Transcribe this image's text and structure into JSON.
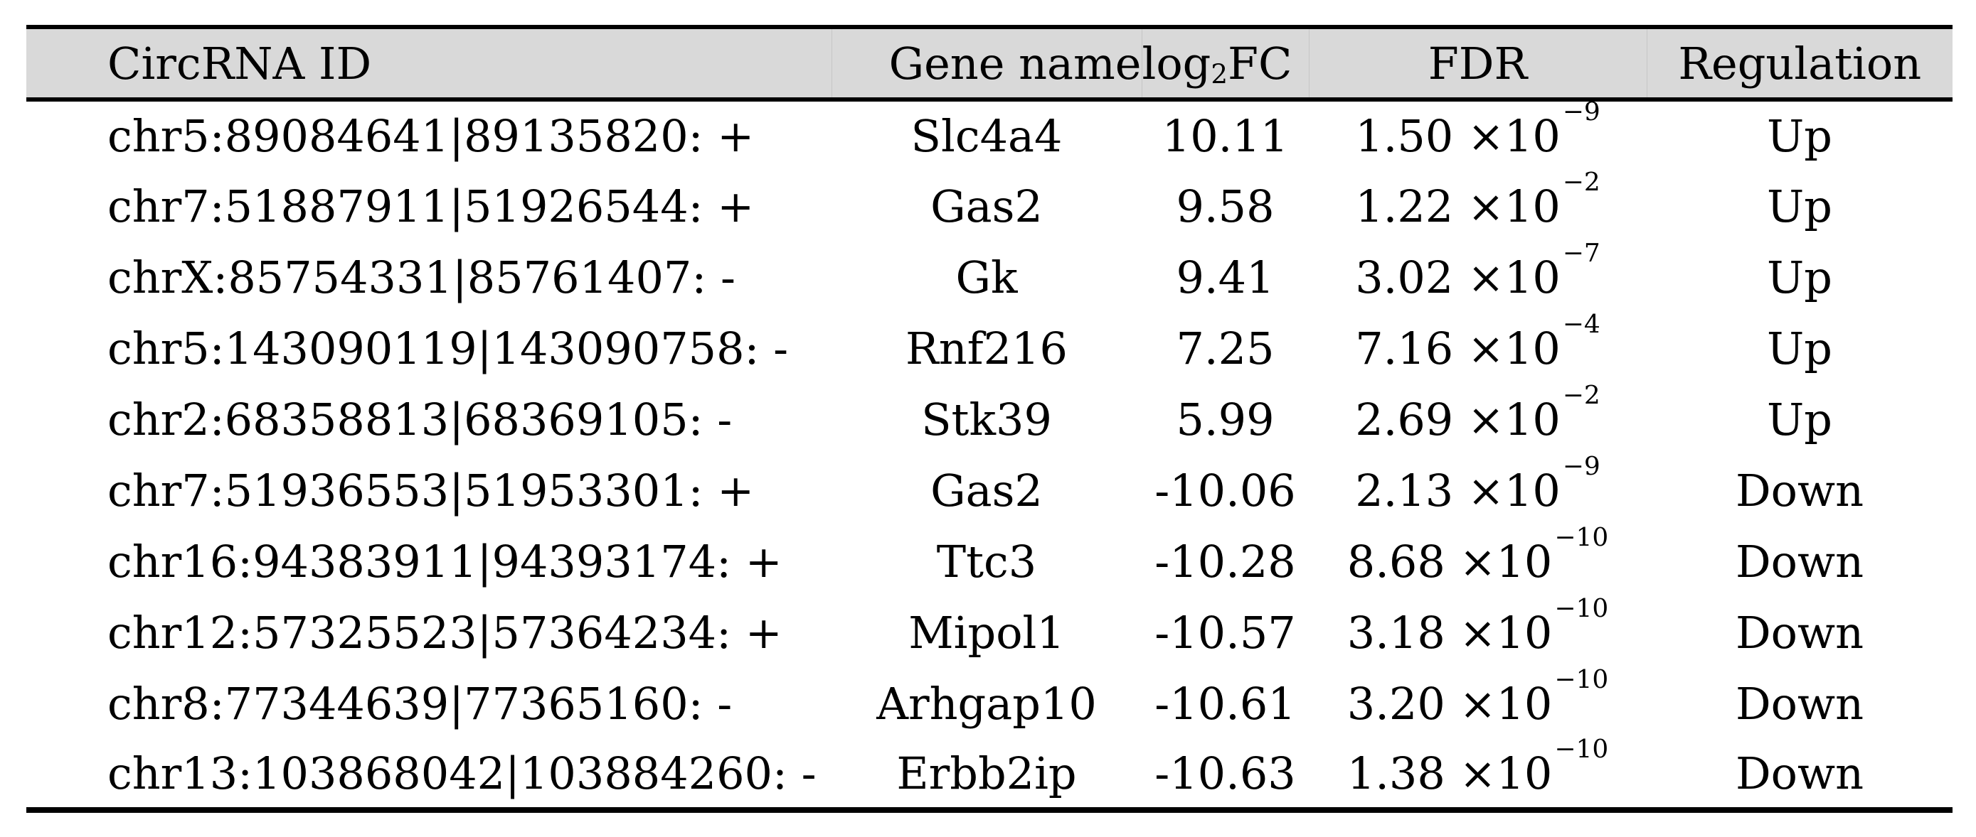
{
  "page": {
    "background": "#ffffff"
  },
  "table": {
    "style": {
      "header_bg": "#d9d9d9",
      "rule_color": "#000000",
      "text_color": "#000000"
    },
    "header": {
      "circrna": "CircRNA ID",
      "gene": "Gene name",
      "log2fc": {
        "pre": "log",
        "sub": "2",
        "post": "FC"
      },
      "fdr": "FDR",
      "regulation": "Regulation"
    },
    "rows": [
      {
        "id": "chr5:89084641|89135820: +",
        "gene": "Slc4a4",
        "fc": "10.11",
        "fdr_base": "1.50 ×10",
        "fdr_exp": "−9",
        "reg": "Up"
      },
      {
        "id": "chr7:51887911|51926544: +",
        "gene": "Gas2",
        "fc": "9.58",
        "fdr_base": "1.22 ×10",
        "fdr_exp": "−2",
        "reg": "Up"
      },
      {
        "id": "chrX:85754331|85761407: -",
        "gene": "Gk",
        "fc": "9.41",
        "fdr_base": "3.02 ×10",
        "fdr_exp": "−7",
        "reg": "Up"
      },
      {
        "id": "chr5:143090119|143090758: -",
        "gene": "Rnf216",
        "fc": "7.25",
        "fdr_base": "7.16 ×10",
        "fdr_exp": "−4",
        "reg": "Up"
      },
      {
        "id": "chr2:68358813|68369105: -",
        "gene": "Stk39",
        "fc": "5.99",
        "fdr_base": "2.69 ×10",
        "fdr_exp": "−2",
        "reg": "Up"
      },
      {
        "id": "chr7:51936553|51953301: +",
        "gene": "Gas2",
        "fc": "-10.06",
        "fdr_base": "2.13 ×10",
        "fdr_exp": "−9",
        "reg": "Down"
      },
      {
        "id": "chr16:94383911|94393174: +",
        "gene": "Ttc3",
        "fc": "-10.28",
        "fdr_base": "8.68 ×10",
        "fdr_exp": "−10",
        "reg": "Down"
      },
      {
        "id": "chr12:57325523|57364234: +",
        "gene": "Mipol1",
        "fc": "-10.57",
        "fdr_base": "3.18 ×10",
        "fdr_exp": "−10",
        "reg": "Down"
      },
      {
        "id": "chr8:77344639|77365160: -",
        "gene": "Arhgap10",
        "fc": "-10.61",
        "fdr_base": "3.20 ×10",
        "fdr_exp": "−10",
        "reg": "Down"
      },
      {
        "id": "chr13:103868042|103884260: -",
        "gene": "Erbb2ip",
        "fc": "-10.63",
        "fdr_base": "1.38 ×10",
        "fdr_exp": "−10",
        "reg": "Down"
      }
    ]
  }
}
